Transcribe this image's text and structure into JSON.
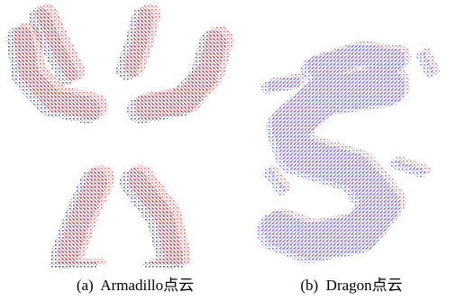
{
  "figure": {
    "panels": [
      {
        "caption": "(a)  Armadillo点云"
      },
      {
        "caption": "(b)  Dragon点云"
      }
    ]
  }
}
